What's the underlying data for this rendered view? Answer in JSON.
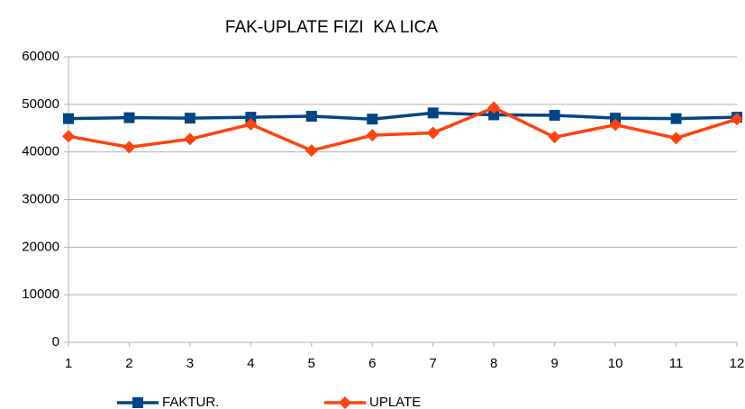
{
  "chart_data": {
    "type": "line",
    "title": "FAK-UPLATE FIZI  KA LICA",
    "x": [
      1,
      2,
      3,
      4,
      5,
      6,
      7,
      8,
      9,
      10,
      11,
      12
    ],
    "xlim": [
      1,
      12
    ],
    "xticks": [
      1,
      2,
      3,
      4,
      5,
      6,
      7,
      8,
      9,
      10,
      11,
      12
    ],
    "ylim": [
      0,
      60000
    ],
    "yticks": [
      0,
      10000,
      20000,
      30000,
      40000,
      50000,
      60000
    ],
    "grid": true,
    "legend": "bottom",
    "series": [
      {
        "name": "FAKTUR.",
        "color": "#004586",
        "marker": "square",
        "values": [
          47000,
          47200,
          47100,
          47300,
          47500,
          46900,
          48200,
          47800,
          47700,
          47100,
          47000,
          47300
        ]
      },
      {
        "name": "UPLATE",
        "color": "#ff420e",
        "marker": "diamond",
        "values": [
          43300,
          41000,
          42700,
          45800,
          40300,
          43500,
          44000,
          49300,
          43100,
          45700,
          42900,
          46900
        ]
      }
    ]
  }
}
